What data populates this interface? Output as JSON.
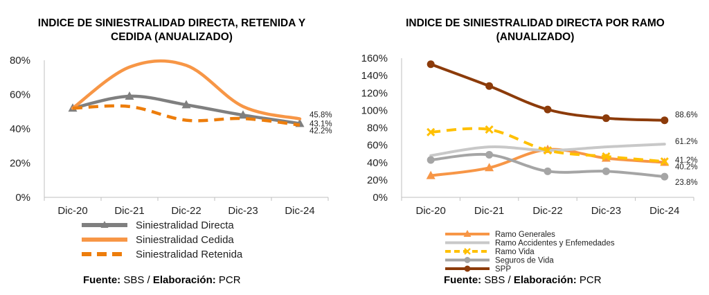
{
  "charts": [
    {
      "title_line1": "INDICE DE SINIESTRALIDAD DIRECTA, RETENIDA Y",
      "title_line2": "CEDIDA (ANUALIZADO)",
      "source": {
        "label1": "Fuente:",
        "text1": "SBS /",
        "label2": "Elaboración:",
        "text2": "PCR"
      }
    },
    {
      "title_line1": "INDICE DE SINIESTRALIDAD DIRECTA POR RAMO",
      "title_line2": "(ANUALIZADO)",
      "source": {
        "label1": "Fuente:",
        "text1": "SBS /",
        "label2": "Elaboración:",
        "text2": "PCR"
      }
    }
  ],
  "chart_data": [
    {
      "type": "line",
      "title": "INDICE DE SINIESTRALIDAD DIRECTA, RETENIDA Y CEDIDA (ANUALIZADO)",
      "categories": [
        "Dic-20",
        "Dic-21",
        "Dic-22",
        "Dic-23",
        "Dic-24"
      ],
      "ylim": [
        0,
        0.8
      ],
      "yticks": [
        0,
        0.2,
        0.4,
        0.6,
        0.8
      ],
      "ytick_labels": [
        "0%",
        "20%",
        "40%",
        "60%",
        "80%"
      ],
      "legend_position": "bottom",
      "series": [
        {
          "name": "Siniestralidad Directa",
          "values": [
            0.52,
            0.59,
            0.54,
            0.48,
            0.431
          ],
          "color": "#7f7f7f",
          "style": "solid",
          "marker": "triangle",
          "end_label": "43.1%"
        },
        {
          "name": "Siniestralidad Cedida",
          "values": [
            0.52,
            0.76,
            0.77,
            0.53,
            0.458
          ],
          "color": "#f79646",
          "style": "solid",
          "marker": "none",
          "end_label": "45.8%"
        },
        {
          "name": "Siniestralidad Retenida",
          "values": [
            0.52,
            0.53,
            0.45,
            0.46,
            0.422
          ],
          "color": "#ed7d0b",
          "style": "dashed",
          "marker": "none",
          "end_label": "42.2%"
        }
      ]
    },
    {
      "type": "line",
      "title": "INDICE DE SINIESTRALIDAD DIRECTA POR RAMO (ANUALIZADO)",
      "categories": [
        "Dic-20",
        "Dic-21",
        "Dic-22",
        "Dic-23",
        "Dic-24"
      ],
      "ylim": [
        0,
        1.6
      ],
      "yticks": [
        0,
        0.2,
        0.4,
        0.6,
        0.8,
        1.0,
        1.2,
        1.4,
        1.6
      ],
      "ytick_labels": [
        "0%",
        "20%",
        "40%",
        "60%",
        "80%",
        "100%",
        "120%",
        "140%",
        "160%"
      ],
      "legend_position": "bottom",
      "series": [
        {
          "name": "Ramo Generales",
          "values": [
            0.25,
            0.34,
            0.55,
            0.45,
            0.402
          ],
          "color": "#f79646",
          "style": "solid",
          "marker": "triangle",
          "end_label": "40.2%"
        },
        {
          "name": "Ramo Accidentes y Enfemedades",
          "values": [
            0.48,
            0.58,
            0.54,
            0.58,
            0.612
          ],
          "color": "#c8c8c8",
          "style": "solid",
          "marker": "none",
          "end_label": "61.2%"
        },
        {
          "name": "Ramo Vida",
          "values": [
            0.75,
            0.78,
            0.54,
            0.47,
            0.412
          ],
          "color": "#ffc000",
          "style": "dashed",
          "marker": "x",
          "end_label": "41.2%"
        },
        {
          "name": "Seguros de Vida",
          "values": [
            0.43,
            0.49,
            0.3,
            0.3,
            0.238
          ],
          "color": "#a5a5a5",
          "style": "solid",
          "marker": "circle",
          "end_label": "23.8%"
        },
        {
          "name": "SPP",
          "values": [
            1.53,
            1.28,
            1.01,
            0.91,
            0.886
          ],
          "color": "#8c3b0a",
          "style": "solid",
          "marker": "circle",
          "end_label": "88.6%"
        }
      ]
    }
  ]
}
